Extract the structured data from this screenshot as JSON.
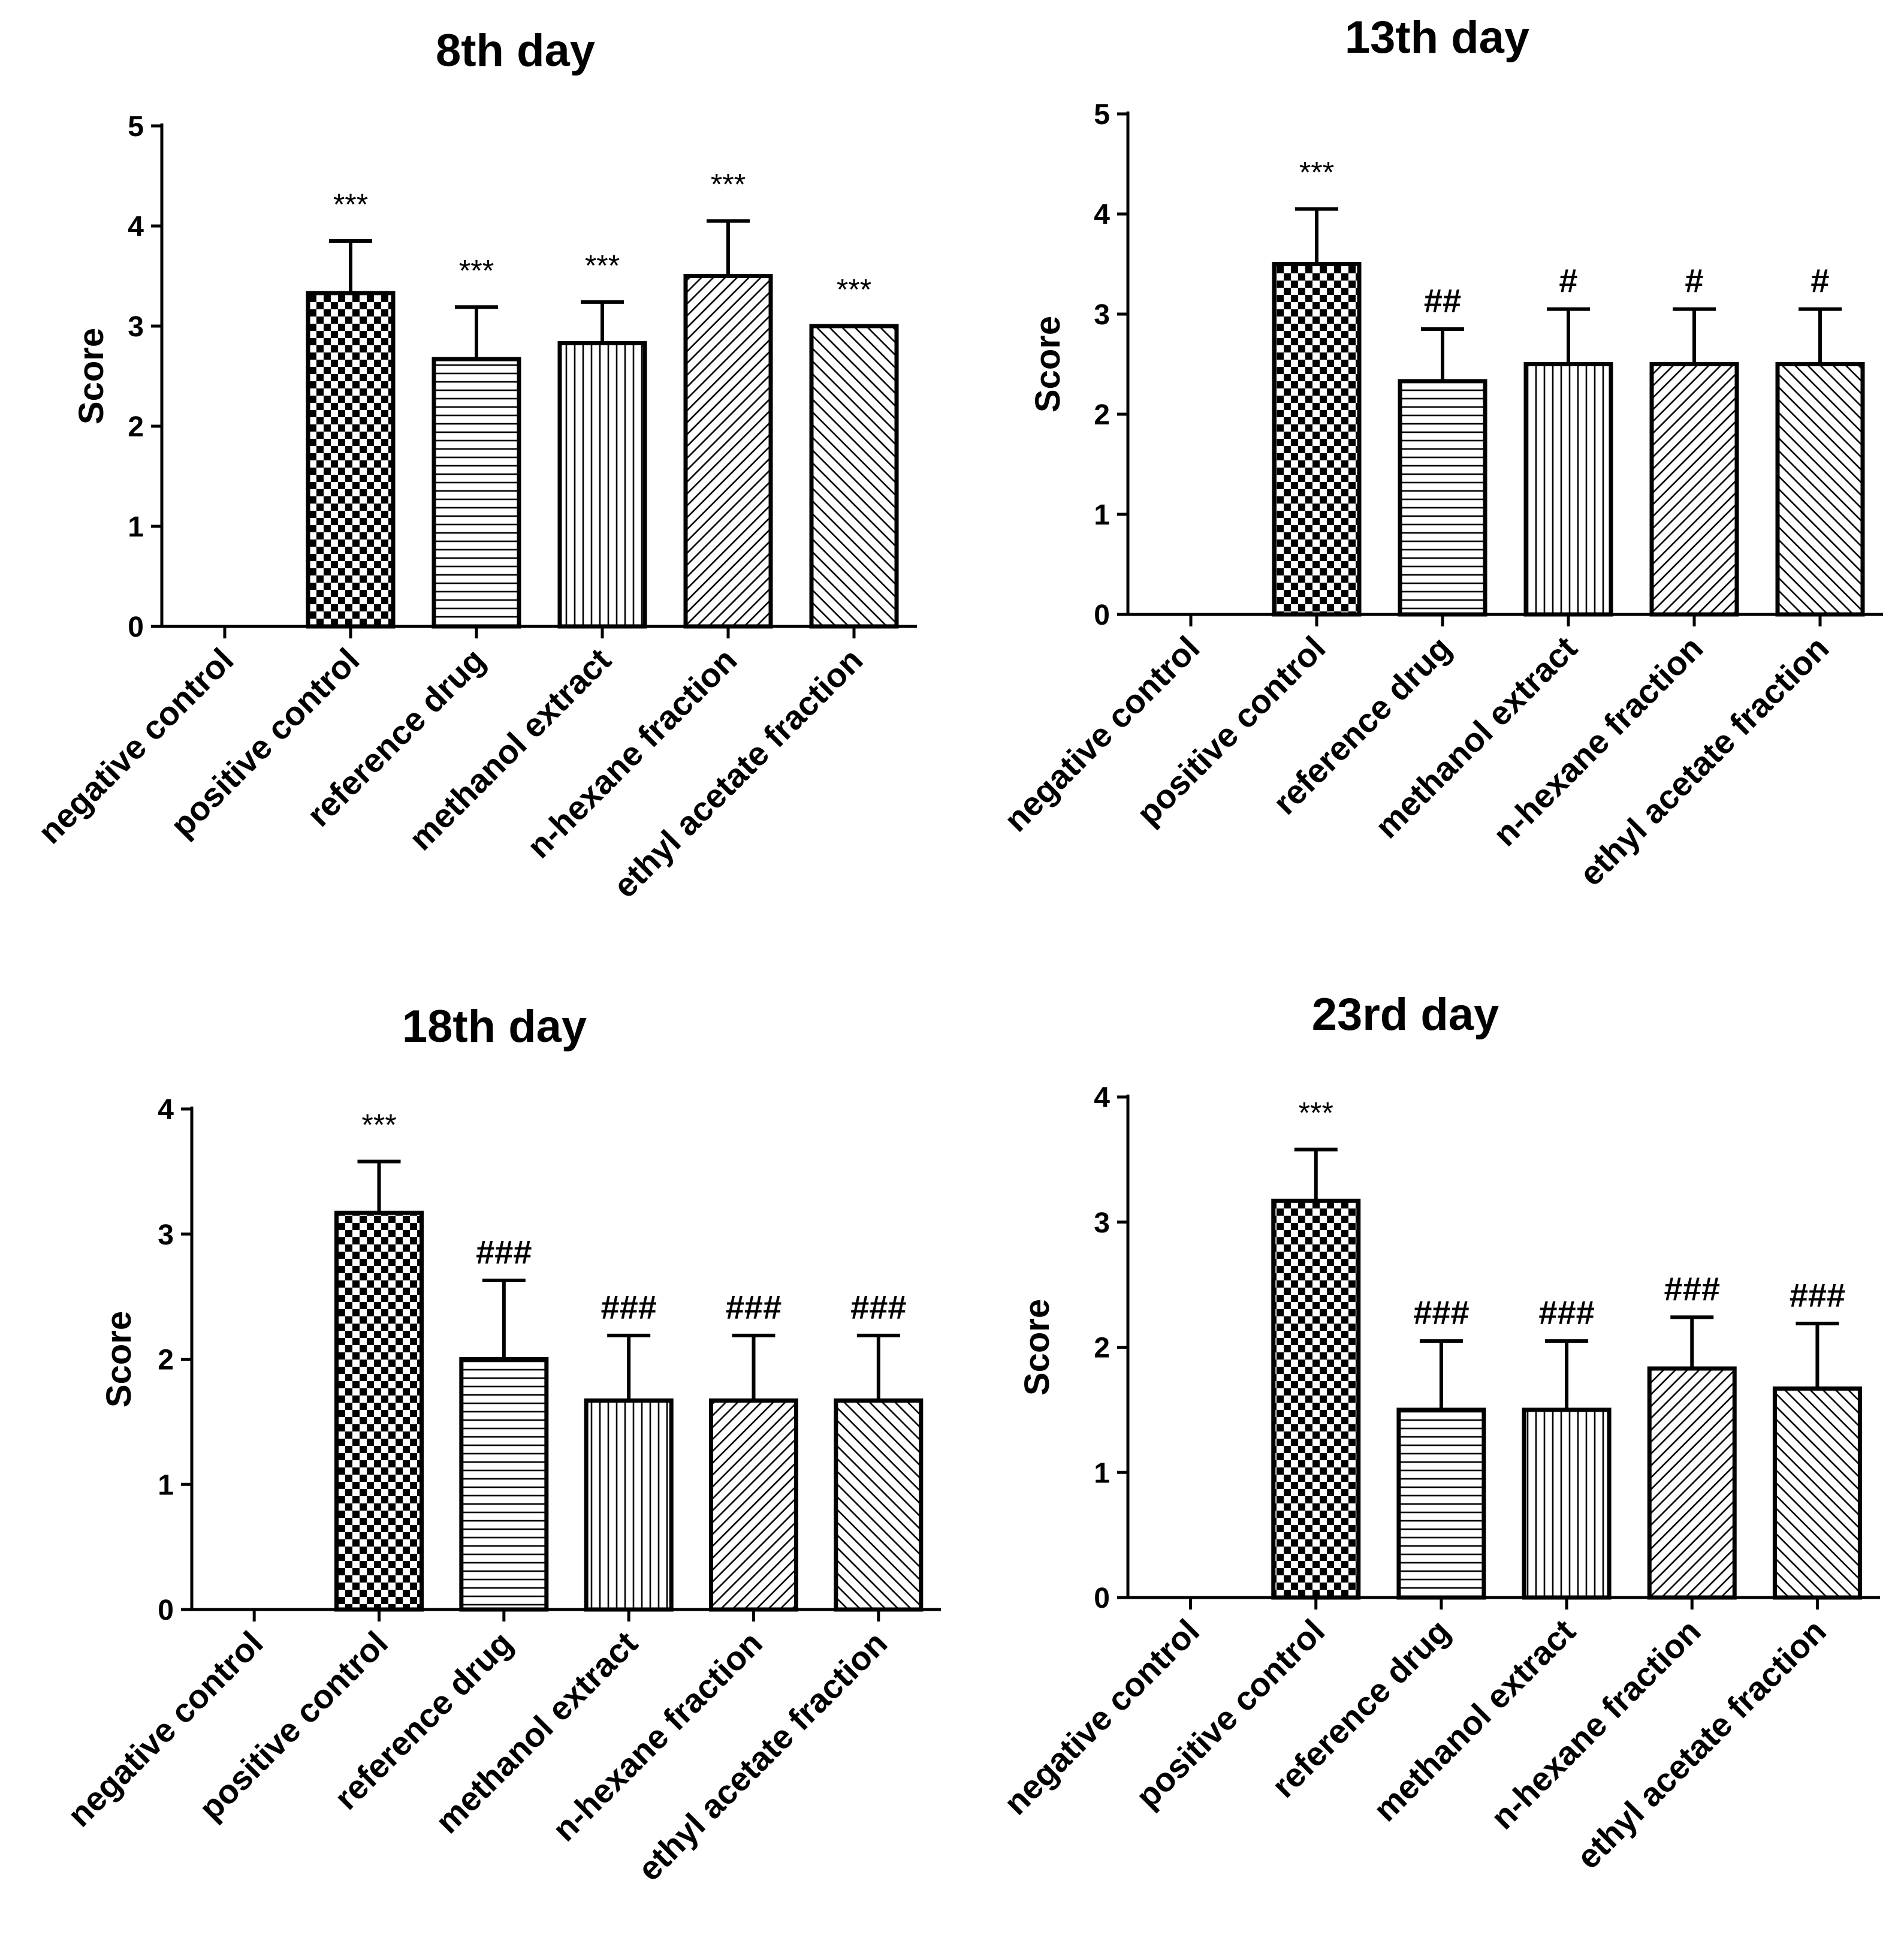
{
  "chart_data": [
    {
      "type": "bar",
      "title": "8th day",
      "xlabel": "",
      "ylabel": "Score",
      "ylim": [
        0,
        5
      ],
      "yticks": [
        "0",
        "1",
        "2",
        "3",
        "4",
        "5"
      ],
      "categories": [
        "negative control",
        "positive control",
        "reference drug",
        "methanol extract",
        "n-hexane fraction",
        "ethyl acetate fraction"
      ],
      "values": [
        0,
        3.33,
        2.67,
        2.83,
        3.5,
        3.0
      ],
      "errors": [
        0,
        0.52,
        0.52,
        0.41,
        0.55,
        0
      ],
      "annotations": [
        "",
        "***",
        "***",
        "***",
        "***",
        "***"
      ]
    },
    {
      "type": "bar",
      "title": "13th day",
      "xlabel": "",
      "ylabel": "Score",
      "ylim": [
        0,
        5
      ],
      "yticks": [
        "0",
        "1",
        "2",
        "3",
        "4",
        "5"
      ],
      "categories": [
        "negative control",
        "positive control",
        "reference drug",
        "methanol extract",
        "n-hexane fraction",
        "ethyl acetate fraction"
      ],
      "values": [
        0,
        3.5,
        2.33,
        2.5,
        2.5,
        2.5
      ],
      "errors": [
        0,
        0.55,
        0.52,
        0.55,
        0.55,
        0.55
      ],
      "annotations": [
        "",
        "***",
        "##",
        "#",
        "#",
        "#"
      ]
    },
    {
      "type": "bar",
      "title": "18th day",
      "xlabel": "",
      "ylabel": "Score",
      "ylim": [
        0,
        4
      ],
      "yticks": [
        "0",
        "1",
        "2",
        "3",
        "4"
      ],
      "categories": [
        "negative control",
        "positive control",
        "reference drug",
        "methanol extract",
        "n-hexane fraction",
        "ethyl acetate fraction"
      ],
      "values": [
        0,
        3.17,
        2.0,
        1.67,
        1.67,
        1.67
      ],
      "errors": [
        0,
        0.41,
        0.63,
        0.52,
        0.52,
        0.52
      ],
      "annotations": [
        "",
        "***",
        "###",
        "###",
        "###",
        "###"
      ]
    },
    {
      "type": "bar",
      "title": "23rd day",
      "xlabel": "",
      "ylabel": "Score",
      "ylim": [
        0,
        4
      ],
      "yticks": [
        "0",
        "1",
        "2",
        "3",
        "4"
      ],
      "categories": [
        "negative control",
        "positive control",
        "reference drug",
        "methanol extract",
        "n-hexane fraction",
        "ethyl acetate fraction"
      ],
      "values": [
        0,
        3.17,
        1.5,
        1.5,
        1.83,
        1.67
      ],
      "errors": [
        0,
        0.41,
        0.55,
        0.55,
        0.41,
        0.52
      ],
      "annotations": [
        "",
        "***",
        "###",
        "###",
        "###",
        "###"
      ]
    }
  ]
}
